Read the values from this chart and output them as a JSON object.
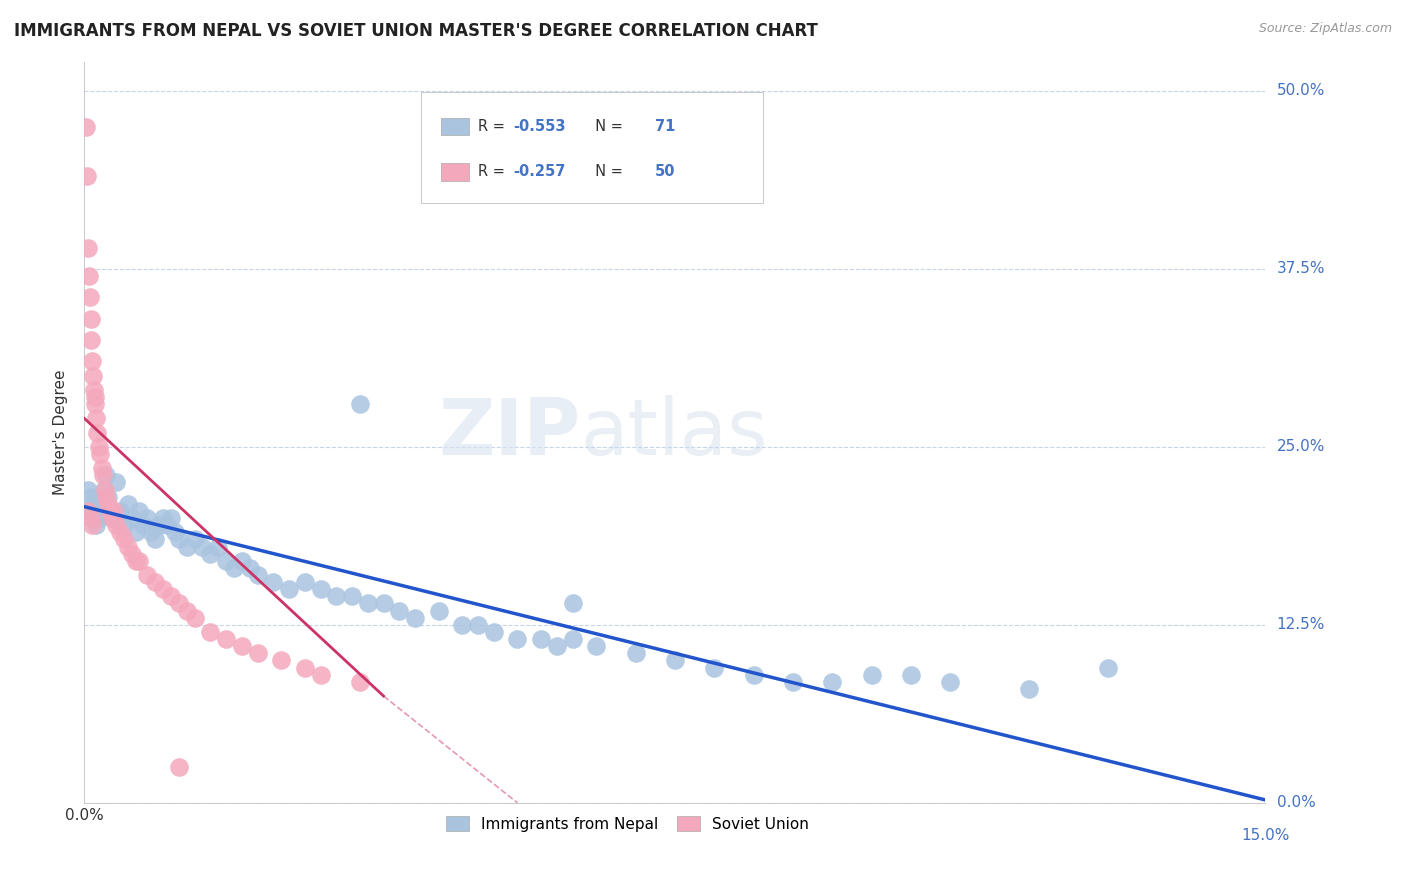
{
  "title": "IMMIGRANTS FROM NEPAL VS SOVIET UNION MASTER'S DEGREE CORRELATION CHART",
  "source": "Source: ZipAtlas.com",
  "ylabel": "Master's Degree",
  "ytick_values": [
    0.0,
    12.5,
    25.0,
    37.5,
    50.0
  ],
  "xlim": [
    0.0,
    15.0
  ],
  "ylim": [
    0.0,
    52.0
  ],
  "nepal_R": -0.553,
  "nepal_N": 71,
  "soviet_R": -0.257,
  "soviet_N": 50,
  "nepal_color": "#aac4e0",
  "soviet_color": "#f4a8bc",
  "nepal_line_color": "#2255cc",
  "soviet_line_color": "#cc3366",
  "background_color": "#ffffff",
  "grid_color": "#c8d4e8",
  "legend_label_nepal": "Immigrants from Nepal",
  "legend_label_soviet": "Soviet Union",
  "watermark": "ZIPatlas",
  "nepal_x": [
    0.05,
    0.08,
    0.1,
    0.12,
    0.15,
    0.18,
    0.2,
    0.22,
    0.25,
    0.28,
    0.3,
    0.35,
    0.4,
    0.45,
    0.5,
    0.55,
    0.6,
    0.65,
    0.7,
    0.75,
    0.8,
    0.85,
    0.9,
    0.95,
    1.0,
    1.05,
    1.1,
    1.15,
    1.2,
    1.3,
    1.4,
    1.5,
    1.6,
    1.7,
    1.8,
    1.9,
    2.0,
    2.1,
    2.2,
    2.4,
    2.6,
    2.8,
    3.0,
    3.2,
    3.4,
    3.6,
    3.8,
    4.0,
    4.2,
    4.5,
    4.8,
    5.0,
    5.2,
    5.5,
    5.8,
    6.0,
    6.2,
    6.5,
    7.0,
    7.5,
    8.0,
    8.5,
    9.0,
    9.5,
    10.0,
    11.0,
    12.0,
    13.0,
    3.5,
    6.2,
    10.5
  ],
  "nepal_y": [
    22.0,
    21.5,
    20.5,
    21.0,
    19.5,
    20.0,
    20.5,
    21.0,
    22.0,
    23.0,
    21.5,
    20.0,
    22.5,
    20.5,
    19.5,
    21.0,
    20.0,
    19.0,
    20.5,
    19.5,
    20.0,
    19.0,
    18.5,
    19.5,
    20.0,
    19.5,
    20.0,
    19.0,
    18.5,
    18.0,
    18.5,
    18.0,
    17.5,
    18.0,
    17.0,
    16.5,
    17.0,
    16.5,
    16.0,
    15.5,
    15.0,
    15.5,
    15.0,
    14.5,
    14.5,
    14.0,
    14.0,
    13.5,
    13.0,
    13.5,
    12.5,
    12.5,
    12.0,
    11.5,
    11.5,
    11.0,
    11.5,
    11.0,
    10.5,
    10.0,
    9.5,
    9.0,
    8.5,
    8.5,
    9.0,
    8.5,
    8.0,
    9.5,
    28.0,
    14.0,
    9.0
  ],
  "soviet_x": [
    0.02,
    0.03,
    0.05,
    0.06,
    0.07,
    0.08,
    0.09,
    0.1,
    0.11,
    0.12,
    0.13,
    0.14,
    0.15,
    0.16,
    0.18,
    0.2,
    0.22,
    0.24,
    0.26,
    0.28,
    0.3,
    0.32,
    0.35,
    0.38,
    0.4,
    0.45,
    0.5,
    0.55,
    0.6,
    0.65,
    0.7,
    0.8,
    0.9,
    1.0,
    1.1,
    1.2,
    1.3,
    1.4,
    1.6,
    1.8,
    2.0,
    2.2,
    2.5,
    2.8,
    3.0,
    3.5,
    0.05,
    0.08,
    0.1,
    1.2
  ],
  "soviet_y": [
    47.5,
    44.0,
    39.0,
    37.0,
    35.5,
    34.0,
    32.5,
    31.0,
    30.0,
    29.0,
    28.5,
    28.0,
    27.0,
    26.0,
    25.0,
    24.5,
    23.5,
    23.0,
    22.0,
    21.5,
    21.0,
    20.5,
    20.0,
    20.5,
    19.5,
    19.0,
    18.5,
    18.0,
    17.5,
    17.0,
    17.0,
    16.0,
    15.5,
    15.0,
    14.5,
    14.0,
    13.5,
    13.0,
    12.0,
    11.5,
    11.0,
    10.5,
    10.0,
    9.5,
    9.0,
    8.5,
    20.5,
    20.0,
    19.5,
    2.5
  ],
  "nepal_trend_x0": 0.0,
  "nepal_trend_y0": 20.8,
  "nepal_trend_x1": 15.0,
  "nepal_trend_y1": 0.2,
  "soviet_trend_x0": 0.0,
  "soviet_trend_y0": 27.0,
  "soviet_trend_x1": 3.8,
  "soviet_trend_y1": 7.5,
  "soviet_dash_x0": 3.8,
  "soviet_dash_y0": 7.5,
  "soviet_dash_x1": 5.5,
  "soviet_dash_y1": 0.0
}
